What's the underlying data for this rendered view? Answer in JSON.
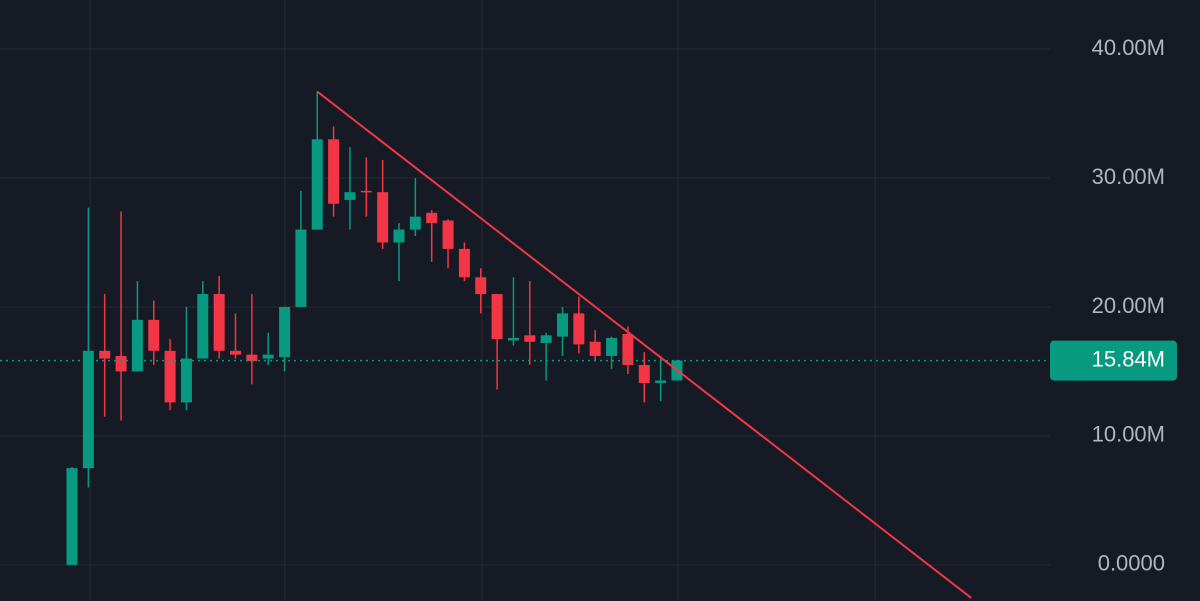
{
  "chart_data": {
    "type": "candlestick",
    "categories": [
      null,
      null,
      null,
      null,
      null,
      null,
      null,
      null,
      null,
      null,
      null,
      null,
      null,
      null,
      null,
      null,
      null,
      null,
      null,
      null,
      null,
      null,
      null,
      null,
      null,
      null,
      null,
      null,
      null,
      null,
      null,
      null,
      null,
      null,
      null,
      null,
      null,
      null
    ],
    "open": [
      0,
      7500000,
      16600000,
      16200000,
      15000000,
      19000000,
      16600000,
      12600000,
      16000000,
      21000000,
      16600000,
      16300000,
      16000000,
      16100000,
      20000000,
      26000000,
      33000000,
      28300000,
      29000000,
      28900000,
      25000000,
      26000000,
      27300000,
      26700000,
      24500000,
      22300000,
      21000000,
      17400000,
      17800000,
      17200000,
      17700000,
      19500000,
      17300000,
      16200000,
      17900000,
      15500000,
      14100000,
      14300000
    ],
    "high": [
      7600000,
      27700000,
      21000000,
      27400000,
      22000000,
      20500000,
      17500000,
      20000000,
      22000000,
      22400000,
      19500000,
      21000000,
      18000000,
      20000000,
      29000000,
      36700000,
      34000000,
      32400000,
      31600000,
      31400000,
      26500000,
      30000000,
      27500000,
      26800000,
      25000000,
      23000000,
      21000000,
      22300000,
      22000000,
      18000000,
      20000000,
      20800000,
      18200000,
      17700000,
      18500000,
      16500000,
      16000000,
      15900000
    ],
    "low": [
      0,
      6000000,
      11500000,
      11200000,
      15000000,
      15500000,
      12000000,
      12000000,
      16000000,
      16000000,
      16000000,
      14000000,
      15500000,
      15000000,
      20000000,
      26000000,
      27000000,
      26000000,
      27000000,
      24500000,
      22000000,
      25500000,
      23500000,
      23000000,
      22000000,
      19500000,
      13600000,
      17000000,
      15500000,
      14300000,
      16200000,
      16400000,
      15800000,
      15200000,
      14800000,
      12600000,
      12700000,
      14300000
    ],
    "close": [
      7500000,
      16600000,
      16000000,
      15000000,
      19000000,
      16600000,
      12600000,
      16000000,
      21000000,
      16600000,
      16300000,
      15800000,
      16300000,
      20000000,
      26000000,
      33000000,
      28000000,
      28900000,
      28900000,
      25000000,
      26000000,
      27000000,
      26500000,
      24500000,
      22300000,
      21000000,
      17500000,
      17600000,
      17300000,
      17800000,
      19500000,
      17100000,
      16200000,
      17600000,
      15500000,
      14100000,
      14300000,
      15840000
    ],
    "up_color": "#089981",
    "down_color": "#f23645",
    "ylim": [
      -2800000,
      43800000
    ],
    "yticks": [
      {
        "value": 0,
        "label": "0.0000"
      },
      {
        "value": 10000000,
        "label": "10.00M"
      },
      {
        "value": 20000000,
        "label": "20.00M"
      },
      {
        "value": 30000000,
        "label": "30.00M"
      },
      {
        "value": 40000000,
        "label": "40.00M"
      }
    ],
    "grid": true,
    "last_price": {
      "value": 15840000,
      "label": "15.84M",
      "color": "#089981"
    },
    "trendline": {
      "x": [
        15,
        55
      ],
      "y": [
        36700000,
        -2560000
      ],
      "color": "#f23645"
    }
  }
}
